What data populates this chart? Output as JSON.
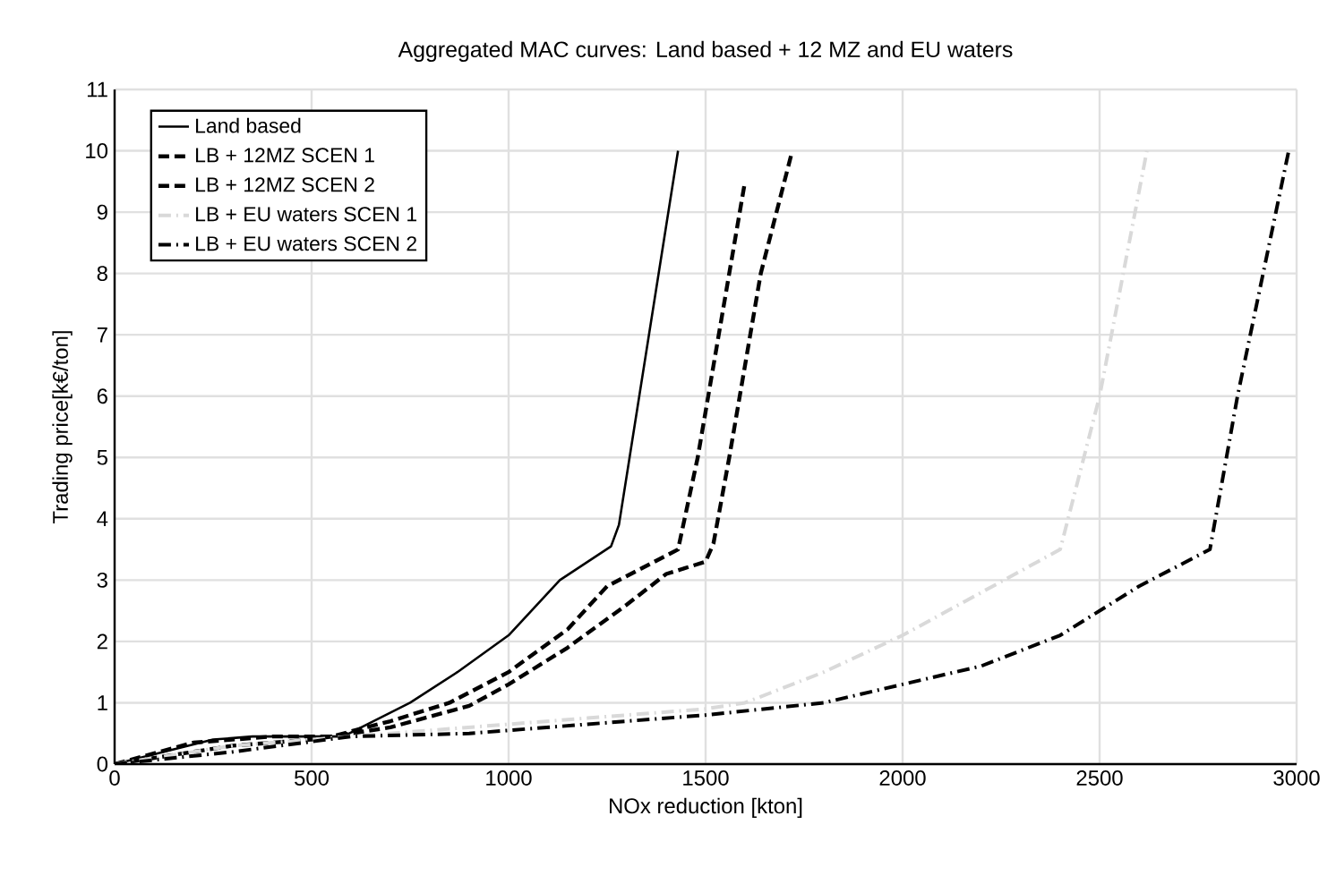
{
  "chart_data": {
    "type": "line",
    "title": "Aggregated MAC curves: Land based + 12 MZ and EU waters",
    "xlabel": "NOx reduction [kton]",
    "ylabel": "Trading price[k€/ton]",
    "xlim": [
      0,
      3000
    ],
    "xticks": [
      0,
      500,
      1000,
      1500,
      2000,
      2500,
      3000
    ],
    "ylim": [
      0,
      11
    ],
    "yticks": [
      0,
      1,
      2,
      3,
      4,
      5,
      6,
      7,
      8,
      9,
      10,
      11
    ],
    "grid": true,
    "legend": "top left",
    "marker": "none",
    "series": [
      {
        "name": "Land based",
        "color": "#000000",
        "line_style": "solid",
        "x": [
          0,
          250,
          350,
          580,
          750,
          870,
          1000,
          1130,
          1260,
          1280,
          1430
        ],
        "values": [
          0,
          0.4,
          0.45,
          0.45,
          1.0,
          1.5,
          2.1,
          3.0,
          3.55,
          3.9,
          10
        ]
      },
      {
        "name": "LB + 12MZ SCEN 1",
        "color": "#000000",
        "line_style": "dashed",
        "x": [
          0,
          200,
          400,
          550,
          700,
          850,
          1000,
          1150,
          1250,
          1430,
          1480,
          1600
        ],
        "values": [
          0,
          0.35,
          0.45,
          0.45,
          0.7,
          1.0,
          1.5,
          2.2,
          2.9,
          3.5,
          5,
          9.5
        ]
      },
      {
        "name": "LB + 12MZ SCEN 2",
        "color": "#000000",
        "line_style": "dashed",
        "x": [
          0,
          300,
          500,
          700,
          900,
          1000,
          1150,
          1300,
          1400,
          1500,
          1520,
          1560,
          1640,
          1720
        ],
        "values": [
          0,
          0.3,
          0.4,
          0.6,
          0.95,
          1.3,
          1.9,
          2.6,
          3.1,
          3.3,
          3.6,
          5,
          8,
          10
        ]
      },
      {
        "name": "LB + EU waters SCEN 1",
        "color": "#d9d9d9",
        "line_style": "dashdot",
        "x": [
          0,
          300,
          600,
          900,
          1200,
          1500,
          1600,
          1800,
          2000,
          2200,
          2400,
          2500,
          2620
        ],
        "values": [
          0,
          0.3,
          0.45,
          0.6,
          0.75,
          0.9,
          1.0,
          1.5,
          2.1,
          2.8,
          3.5,
          6,
          10
        ]
      },
      {
        "name": "LB + EU waters SCEN 2",
        "color": "#000000",
        "line_style": "dashdot",
        "x": [
          0,
          300,
          600,
          900,
          1200,
          1500,
          1800,
          2000,
          2200,
          2400,
          2600,
          2780,
          2850,
          2980
        ],
        "values": [
          0,
          0.2,
          0.45,
          0.5,
          0.65,
          0.8,
          1.0,
          1.3,
          1.6,
          2.1,
          2.9,
          3.5,
          6,
          10
        ]
      }
    ]
  }
}
